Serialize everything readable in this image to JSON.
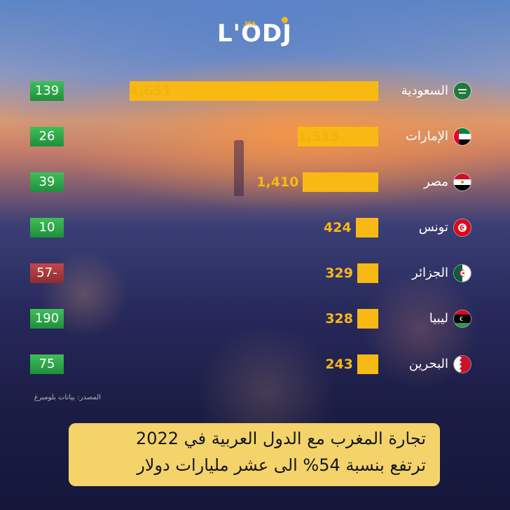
{
  "brand": {
    "logo_text": "L'ODJ",
    "logo_sub": ".MA"
  },
  "chart_data": {
    "type": "bar",
    "orientation": "horizontal",
    "categories": [
      "السعودية",
      "الإمارات",
      "مصر",
      "تونس",
      "الجزائر",
      "ليبيا",
      "البحرين"
    ],
    "values": [
      4651,
      1513,
      1410,
      424,
      329,
      328,
      243
    ],
    "value_labels": [
      "4,651",
      "1,513",
      "1,410",
      "424",
      "329",
      "328",
      "243"
    ],
    "side_values": [
      139,
      26,
      39,
      10,
      -57,
      190,
      75
    ],
    "side_labels": [
      "139",
      "26",
      "39",
      "10",
      "57-",
      "190",
      "75"
    ],
    "flags": [
      "saudi-arabia-flag-icon",
      "uae-flag-icon",
      "egypt-flag-icon",
      "tunisia-flag-icon",
      "algeria-flag-icon",
      "libya-flag-icon",
      "bahrain-flag-icon"
    ],
    "colors": {
      "bar": "#f9b914",
      "positive": "#2aa84a",
      "negative": "#b03a3e",
      "caption_bg": "#f3d36a"
    },
    "source": "المصدر: بيانات بلومبرغ",
    "title": "تجارة المغرب مع الدول العربية في 2022",
    "subtitle": "ترتفع بنسبة 54% الى عشر مليارات دولار"
  }
}
